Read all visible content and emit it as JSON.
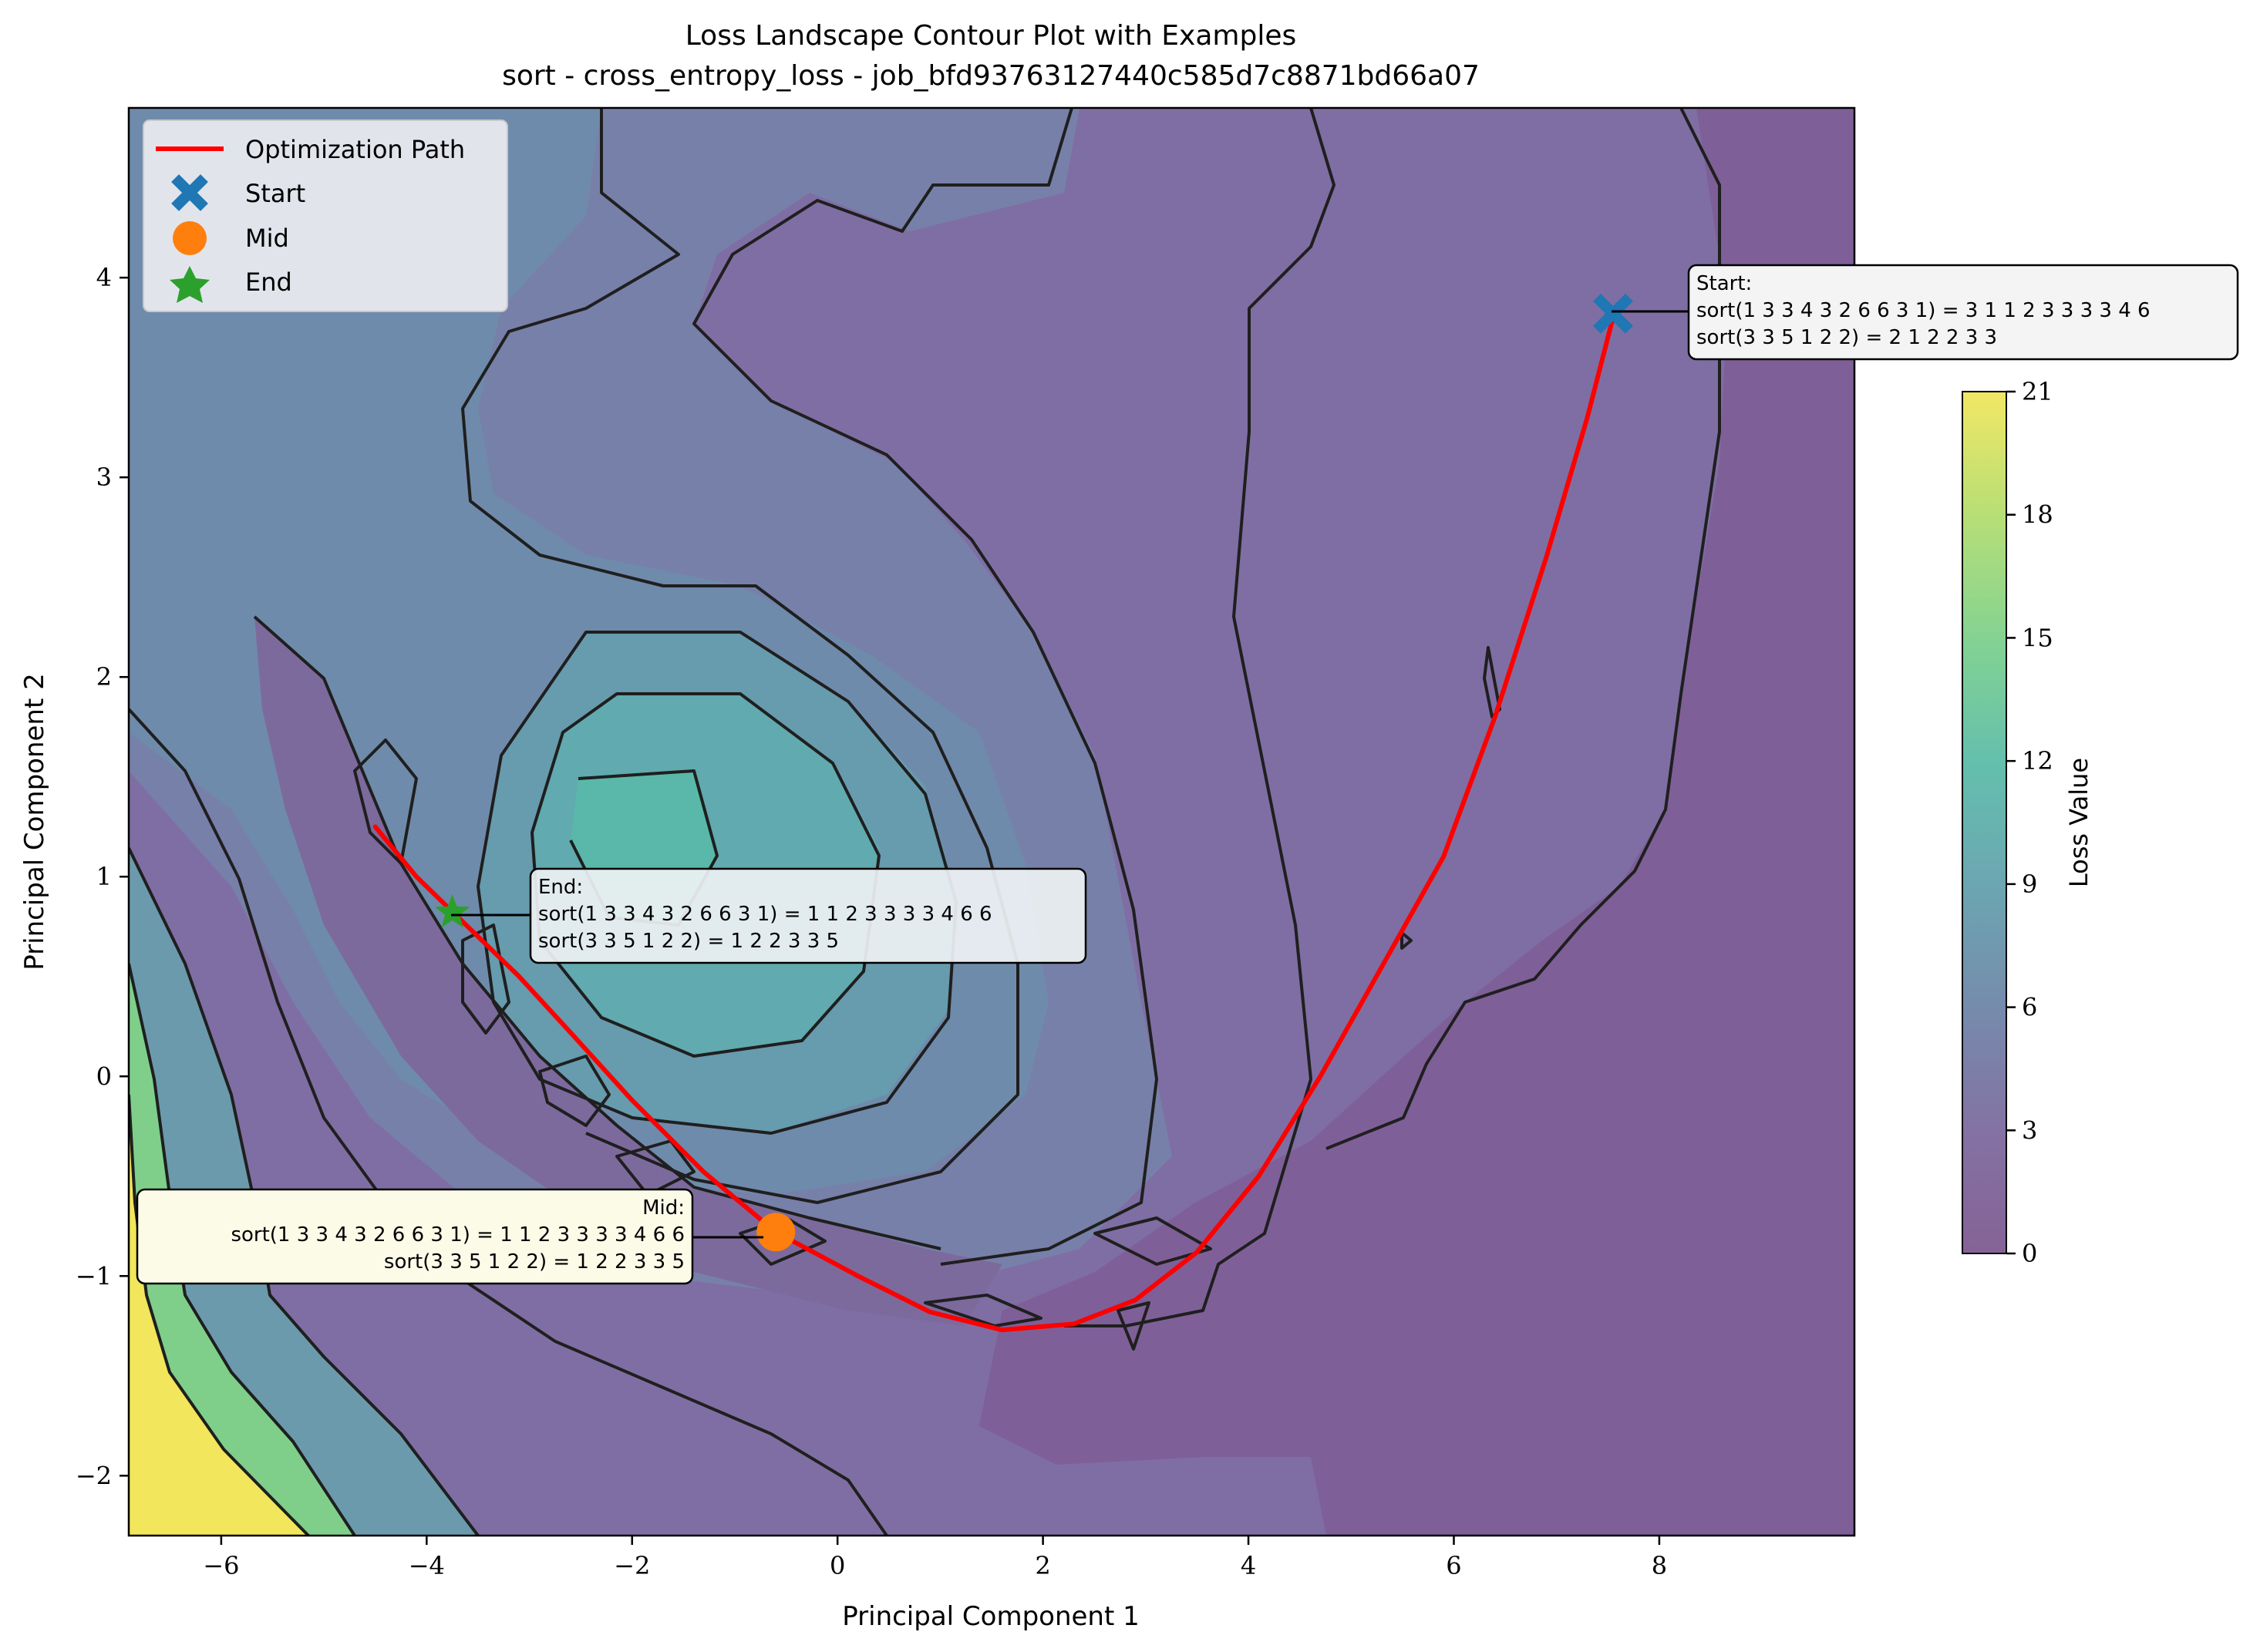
{
  "chart_data": {
    "type": "contour",
    "title": "Loss Landscape Contour Plot with Examples",
    "subtitle": "sort - cross_entropy_loss - job_bfd93763127440c585d7c8871bd66a07",
    "xlabel": "Principal Component 1",
    "ylabel": "Principal Component 2",
    "xlim": [
      -6.9,
      9.9
    ],
    "ylim": [
      -2.3,
      4.85
    ],
    "xticks": [
      "−6",
      "−4",
      "−2",
      "0",
      "2",
      "4",
      "6",
      "8"
    ],
    "xtick_values": [
      -6,
      -4,
      -2,
      0,
      2,
      4,
      6,
      8
    ],
    "yticks": [
      "−2",
      "−1",
      "0",
      "1",
      "2",
      "3",
      "4"
    ],
    "ytick_values": [
      -2,
      -1,
      0,
      1,
      2,
      3,
      4
    ],
    "grid": false,
    "legend_position": "top-left",
    "colormap": "viridis",
    "colorbar": {
      "label": "Loss Value",
      "min": 0,
      "max": 21,
      "ticks": [
        "0",
        "3",
        "6",
        "9",
        "12",
        "15",
        "18",
        "21"
      ],
      "tick_values": [
        0,
        3,
        6,
        9,
        12,
        15,
        18,
        21
      ]
    },
    "legend": [
      {
        "label": "Optimization Path",
        "marker": "line",
        "color": "#ff0000"
      },
      {
        "label": "Start",
        "marker": "x",
        "color": "#1f77b4"
      },
      {
        "label": "Mid",
        "marker": "circle",
        "color": "#ff7f0e"
      },
      {
        "label": "End",
        "marker": "star",
        "color": "#2ca02c"
      }
    ],
    "path": {
      "name": "Optimization Path",
      "color": "#ff0000",
      "x": [
        7.55,
        7.3,
        6.9,
        6.4,
        5.9,
        5.3,
        4.7,
        4.1,
        3.5,
        2.9,
        2.3,
        1.6,
        0.9,
        0.2,
        -0.6,
        -1.3,
        -2.0,
        -2.6,
        -3.1,
        -3.6,
        -4.1,
        -4.5
      ],
      "y": [
        3.8,
        3.3,
        2.6,
        1.8,
        1.1,
        0.55,
        0.0,
        -0.5,
        -0.88,
        -1.12,
        -1.24,
        -1.27,
        -1.18,
        -1.0,
        -0.78,
        -0.48,
        -0.12,
        0.22,
        0.5,
        0.75,
        1.0,
        1.25
      ]
    },
    "points": [
      {
        "name": "Start",
        "x": 7.55,
        "y": 3.82,
        "color": "#1f77b4",
        "marker": "x"
      },
      {
        "name": "Mid",
        "x": -0.6,
        "y": -0.78,
        "color": "#ff7f0e",
        "marker": "circle"
      },
      {
        "name": "End",
        "x": -3.75,
        "y": 0.82,
        "color": "#2ca02c",
        "marker": "star"
      }
    ],
    "annotations": [
      {
        "name": "start",
        "lines": [
          "Start:",
          "sort(1 3 3 4 3 2 6 6 3 1) = 3 1 1 2 3 3 3 3 4 6",
          "sort(3 3 5 1 2 2) = 2 1 2 2 3 3"
        ]
      },
      {
        "name": "end",
        "lines": [
          "End:",
          "sort(1 3 3 4 3 2 6 6 3 1) = 1 1 2 3 3 3 3 4 6 6",
          "sort(3 3 5 1 2 2) = 1 2 2 3 3 5"
        ]
      },
      {
        "name": "mid",
        "lines": [
          "Mid:",
          "sort(1 3 3 4 3 2 6 6 3 1) = 1 1 2 3 3 3 3 4 6 6",
          "sort(3 3 5 1 2 2) = 1 2 2 3 3 5"
        ]
      }
    ]
  }
}
